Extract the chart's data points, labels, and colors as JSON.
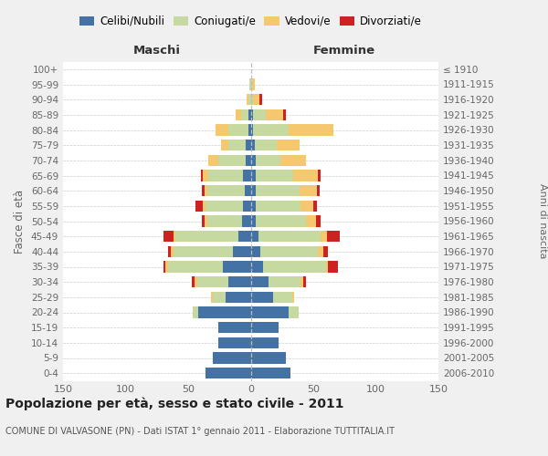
{
  "age_groups": [
    "0-4",
    "5-9",
    "10-14",
    "15-19",
    "20-24",
    "25-29",
    "30-34",
    "35-39",
    "40-44",
    "45-49",
    "50-54",
    "55-59",
    "60-64",
    "65-69",
    "70-74",
    "75-79",
    "80-84",
    "85-89",
    "90-94",
    "95-99",
    "100+"
  ],
  "birth_years": [
    "2006-2010",
    "2001-2005",
    "1996-2000",
    "1991-1995",
    "1986-1990",
    "1981-1985",
    "1976-1980",
    "1971-1975",
    "1966-1970",
    "1961-1965",
    "1956-1960",
    "1951-1955",
    "1946-1950",
    "1941-1945",
    "1936-1940",
    "1931-1935",
    "1926-1930",
    "1921-1925",
    "1916-1920",
    "1911-1915",
    "≤ 1910"
  ],
  "maschi": {
    "celibi": [
      36,
      30,
      26,
      26,
      42,
      20,
      18,
      22,
      14,
      10,
      7,
      6,
      5,
      6,
      4,
      4,
      2,
      2,
      0,
      0,
      0
    ],
    "coniugati": [
      0,
      0,
      0,
      0,
      4,
      10,
      25,
      44,
      48,
      50,
      28,
      30,
      30,
      28,
      22,
      14,
      16,
      6,
      2,
      1,
      0
    ],
    "vedovi": [
      0,
      0,
      0,
      0,
      0,
      2,
      2,
      2,
      2,
      2,
      2,
      2,
      2,
      4,
      8,
      6,
      10,
      4,
      1,
      0,
      0
    ],
    "divorziati": [
      0,
      0,
      0,
      0,
      0,
      0,
      2,
      2,
      2,
      8,
      2,
      6,
      2,
      2,
      0,
      0,
      0,
      0,
      0,
      0,
      0
    ]
  },
  "femmine": {
    "nubili": [
      32,
      28,
      22,
      22,
      30,
      18,
      14,
      10,
      8,
      6,
      4,
      4,
      4,
      4,
      4,
      3,
      2,
      2,
      0,
      0,
      0
    ],
    "coniugate": [
      0,
      0,
      0,
      0,
      8,
      15,
      26,
      50,
      46,
      50,
      40,
      36,
      35,
      30,
      20,
      18,
      28,
      10,
      2,
      1,
      0
    ],
    "vedove": [
      0,
      0,
      0,
      0,
      0,
      2,
      2,
      2,
      4,
      5,
      8,
      10,
      14,
      20,
      20,
      18,
      36,
      14,
      5,
      2,
      0
    ],
    "divorziate": [
      0,
      0,
      0,
      0,
      0,
      0,
      2,
      8,
      4,
      10,
      4,
      3,
      2,
      2,
      0,
      0,
      0,
      2,
      2,
      0,
      0
    ]
  },
  "colors": {
    "celibi": "#4472a4",
    "coniugati": "#c5d9a0",
    "vedovi": "#f5c870",
    "divorziati": "#cc2222"
  },
  "xlim": 150,
  "title": "Popolazione per età, sesso e stato civile - 2011",
  "subtitle": "COMUNE DI VALVASONE (PN) - Dati ISTAT 1° gennaio 2011 - Elaborazione TUTTITALIA.IT",
  "bg_color": "#f0f0f0",
  "plot_bg": "#ffffff"
}
